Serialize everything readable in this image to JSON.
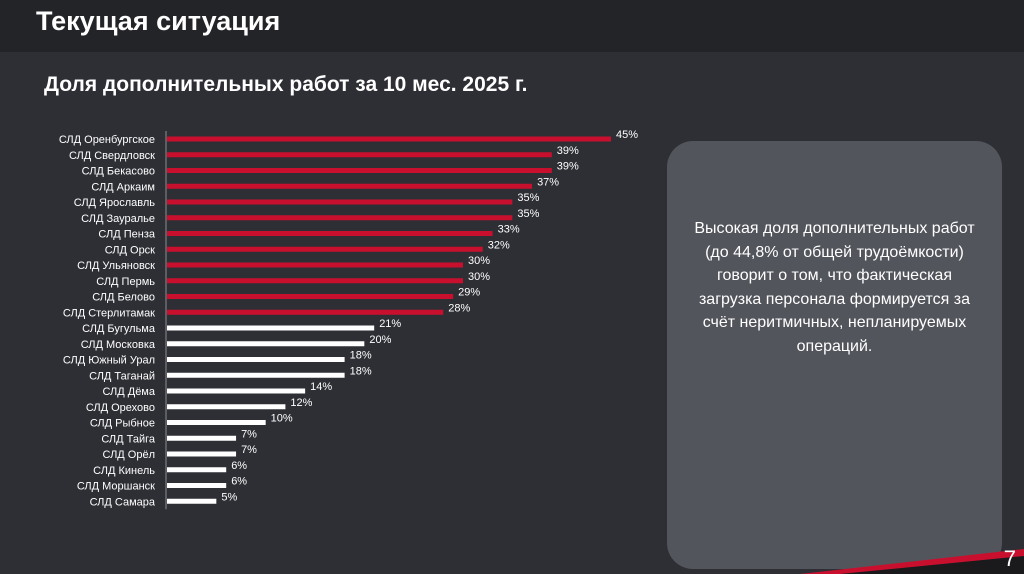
{
  "header": {
    "title": "Текущая ситуация"
  },
  "subtitle": "Доля дополнительных работ за 10 мес. 2025 г.",
  "colors": {
    "highlight": "#c8102e",
    "normal": "#ffffff",
    "background": "#2e2f35",
    "panel": "#53555c"
  },
  "chart_data": {
    "type": "bar",
    "orientation": "horizontal",
    "categories": [
      "СЛД Оренбургское",
      "СЛД Свердловск",
      "СЛД Бекасово",
      "СЛД Аркаим",
      "СЛД Ярославль",
      "СЛД Зауралье",
      "СЛД Пенза",
      "СЛД Орск",
      "СЛД Ульяновск",
      "СЛД Пермь",
      "СЛД Белово",
      "СЛД Стерлитамак",
      "СЛД Бугульма",
      "СЛД Московка",
      "СЛД Южный Урал",
      "СЛД Таганай",
      "СЛД Дёма",
      "СЛД Орехово",
      "СЛД Рыбное",
      "СЛД Тайга",
      "СЛД Орёл",
      "СЛД Кинель",
      "СЛД Моршанск",
      "СЛД Самара"
    ],
    "values": [
      45,
      39,
      39,
      37,
      35,
      35,
      33,
      32,
      30,
      30,
      29,
      28,
      21,
      20,
      18,
      18,
      14,
      12,
      10,
      7,
      7,
      6,
      6,
      5
    ],
    "labels": [
      "45%",
      "39%",
      "39%",
      "37%",
      "35%",
      "35%",
      "33%",
      "32%",
      "30%",
      "30%",
      "29%",
      "28%",
      "21%",
      "20%",
      "18%",
      "18%",
      "14%",
      "12%",
      "10%",
      "7%",
      "7%",
      "6%",
      "6%",
      "5%"
    ],
    "highlighted_count": 12,
    "title": "Доля дополнительных работ за 10 мес. 2025 г.",
    "xlabel": "",
    "ylabel": "",
    "grid": false,
    "legend": "none"
  },
  "note": {
    "text": "Высокая доля дополнительных работ (до 44,8% от общей трудоёмкости) говорит о том, что фактическая загрузка персонала формируется за счёт неритмичных, непланируемых операций."
  },
  "page_number": "7"
}
